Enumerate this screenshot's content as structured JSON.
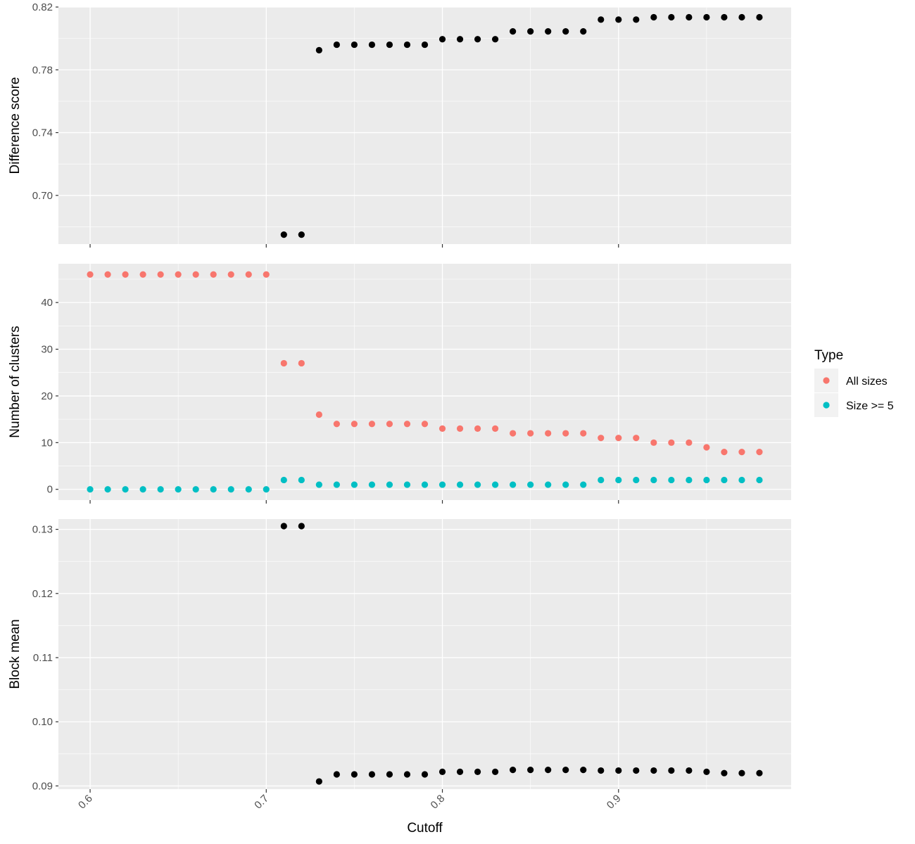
{
  "chart_data": [
    {
      "type": "scatter",
      "panel": "difference-score",
      "title": "",
      "xlabel": "",
      "ylabel": "Difference score",
      "xlim": [
        0.582,
        0.998
      ],
      "ylim": [
        0.669,
        0.82
      ],
      "x_ticks": [
        0.6,
        0.7,
        0.8,
        0.9
      ],
      "y_ticks": [
        0.7,
        0.74,
        0.78,
        0.82
      ],
      "y_tick_labels": [
        "0.70",
        "0.74",
        "0.78",
        "0.82"
      ],
      "grid": true,
      "series": [
        {
          "color": "#000000",
          "points": [
            [
              0.71,
              0.675
            ],
            [
              0.72,
              0.675
            ],
            [
              0.73,
              0.7925
            ],
            [
              0.74,
              0.796
            ],
            [
              0.75,
              0.796
            ],
            [
              0.76,
              0.796
            ],
            [
              0.77,
              0.796
            ],
            [
              0.78,
              0.796
            ],
            [
              0.79,
              0.796
            ],
            [
              0.8,
              0.7995
            ],
            [
              0.81,
              0.7995
            ],
            [
              0.82,
              0.7995
            ],
            [
              0.83,
              0.7995
            ],
            [
              0.84,
              0.8045
            ],
            [
              0.85,
              0.8045
            ],
            [
              0.86,
              0.8045
            ],
            [
              0.87,
              0.8045
            ],
            [
              0.88,
              0.8045
            ],
            [
              0.89,
              0.812
            ],
            [
              0.9,
              0.812
            ],
            [
              0.91,
              0.812
            ],
            [
              0.92,
              0.8135
            ],
            [
              0.93,
              0.8135
            ],
            [
              0.94,
              0.8135
            ],
            [
              0.95,
              0.8135
            ],
            [
              0.96,
              0.8135
            ],
            [
              0.97,
              0.8135
            ],
            [
              0.98,
              0.8135
            ]
          ]
        }
      ]
    },
    {
      "type": "scatter",
      "panel": "number-of-clusters",
      "title": "",
      "xlabel": "",
      "ylabel": "Number of clusters",
      "xlim": [
        0.582,
        0.998
      ],
      "ylim": [
        -2.3,
        48.3
      ],
      "x_ticks": [
        0.6,
        0.7,
        0.8,
        0.9
      ],
      "y_ticks": [
        0,
        10,
        20,
        30,
        40
      ],
      "y_tick_labels": [
        "0",
        "10",
        "20",
        "30",
        "40"
      ],
      "grid": true,
      "legend": {
        "title": "Type",
        "placement": "right"
      },
      "series": [
        {
          "name": "All sizes",
          "color": "#F8766D",
          "points": [
            [
              0.6,
              46
            ],
            [
              0.61,
              46
            ],
            [
              0.62,
              46
            ],
            [
              0.63,
              46
            ],
            [
              0.64,
              46
            ],
            [
              0.65,
              46
            ],
            [
              0.66,
              46
            ],
            [
              0.67,
              46
            ],
            [
              0.68,
              46
            ],
            [
              0.69,
              46
            ],
            [
              0.7,
              46
            ],
            [
              0.71,
              27
            ],
            [
              0.72,
              27
            ],
            [
              0.73,
              16
            ],
            [
              0.74,
              14
            ],
            [
              0.75,
              14
            ],
            [
              0.76,
              14
            ],
            [
              0.77,
              14
            ],
            [
              0.78,
              14
            ],
            [
              0.79,
              14
            ],
            [
              0.8,
              13
            ],
            [
              0.81,
              13
            ],
            [
              0.82,
              13
            ],
            [
              0.83,
              13
            ],
            [
              0.84,
              12
            ],
            [
              0.85,
              12
            ],
            [
              0.86,
              12
            ],
            [
              0.87,
              12
            ],
            [
              0.88,
              12
            ],
            [
              0.89,
              11
            ],
            [
              0.9,
              11
            ],
            [
              0.91,
              11
            ],
            [
              0.92,
              10
            ],
            [
              0.93,
              10
            ],
            [
              0.94,
              10
            ],
            [
              0.95,
              9
            ],
            [
              0.96,
              8
            ],
            [
              0.97,
              8
            ],
            [
              0.98,
              8
            ]
          ]
        },
        {
          "name": "Size >= 5",
          "color": "#00BFC4",
          "points": [
            [
              0.6,
              0
            ],
            [
              0.61,
              0
            ],
            [
              0.62,
              0
            ],
            [
              0.63,
              0
            ],
            [
              0.64,
              0
            ],
            [
              0.65,
              0
            ],
            [
              0.66,
              0
            ],
            [
              0.67,
              0
            ],
            [
              0.68,
              0
            ],
            [
              0.69,
              0
            ],
            [
              0.7,
              0
            ],
            [
              0.71,
              2
            ],
            [
              0.72,
              2
            ],
            [
              0.73,
              1
            ],
            [
              0.74,
              1
            ],
            [
              0.75,
              1
            ],
            [
              0.76,
              1
            ],
            [
              0.77,
              1
            ],
            [
              0.78,
              1
            ],
            [
              0.79,
              1
            ],
            [
              0.8,
              1
            ],
            [
              0.81,
              1
            ],
            [
              0.82,
              1
            ],
            [
              0.83,
              1
            ],
            [
              0.84,
              1
            ],
            [
              0.85,
              1
            ],
            [
              0.86,
              1
            ],
            [
              0.87,
              1
            ],
            [
              0.88,
              1
            ],
            [
              0.89,
              2
            ],
            [
              0.9,
              2
            ],
            [
              0.91,
              2
            ],
            [
              0.92,
              2
            ],
            [
              0.93,
              2
            ],
            [
              0.94,
              2
            ],
            [
              0.95,
              2
            ],
            [
              0.96,
              2
            ],
            [
              0.97,
              2
            ],
            [
              0.98,
              2
            ]
          ]
        }
      ]
    },
    {
      "type": "scatter",
      "panel": "block-mean",
      "title": "",
      "xlabel": "Cutoff",
      "ylabel": "Block mean",
      "xlim": [
        0.582,
        0.998
      ],
      "ylim": [
        0.0895,
        0.1316
      ],
      "x_ticks": [
        0.6,
        0.7,
        0.8,
        0.9
      ],
      "x_tick_labels": [
        "0.6",
        "0.7",
        "0.8",
        "0.9"
      ],
      "y_ticks": [
        0.09,
        0.1,
        0.11,
        0.12,
        0.13
      ],
      "y_tick_labels": [
        "0.09",
        "0.10",
        "0.11",
        "0.12",
        "0.13"
      ],
      "grid": true,
      "series": [
        {
          "color": "#000000",
          "points": [
            [
              0.71,
              0.1305
            ],
            [
              0.72,
              0.1305
            ],
            [
              0.73,
              0.0907
            ],
            [
              0.74,
              0.0918
            ],
            [
              0.75,
              0.0918
            ],
            [
              0.76,
              0.0918
            ],
            [
              0.77,
              0.0918
            ],
            [
              0.78,
              0.0918
            ],
            [
              0.79,
              0.0918
            ],
            [
              0.8,
              0.0922
            ],
            [
              0.81,
              0.0922
            ],
            [
              0.82,
              0.0922
            ],
            [
              0.83,
              0.0922
            ],
            [
              0.84,
              0.0925
            ],
            [
              0.85,
              0.0925
            ],
            [
              0.86,
              0.0925
            ],
            [
              0.87,
              0.0925
            ],
            [
              0.88,
              0.0925
            ],
            [
              0.89,
              0.0924
            ],
            [
              0.9,
              0.0924
            ],
            [
              0.91,
              0.0924
            ],
            [
              0.92,
              0.0924
            ],
            [
              0.93,
              0.0924
            ],
            [
              0.94,
              0.0924
            ],
            [
              0.95,
              0.0922
            ],
            [
              0.96,
              0.092
            ],
            [
              0.97,
              0.092
            ],
            [
              0.98,
              0.092
            ]
          ]
        }
      ]
    }
  ]
}
